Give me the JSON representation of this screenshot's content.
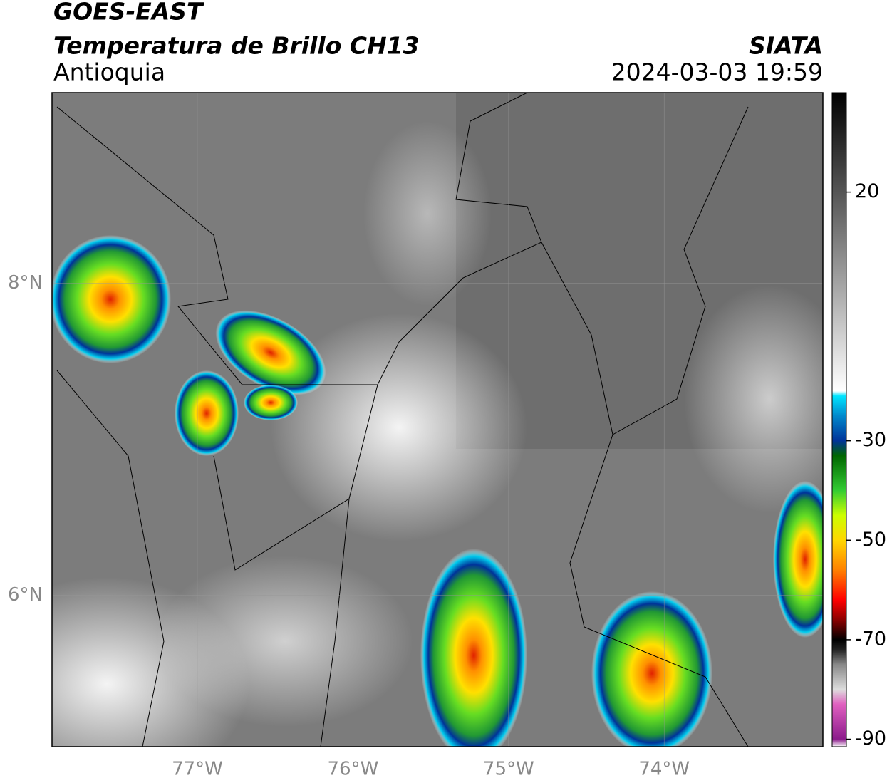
{
  "header": {
    "title": "GOES-EAST",
    "subtitle": "Temperatura de Brillo CH13",
    "region": "Antioquia",
    "source": "SIATA",
    "datetime": "2024-03-03 19:59"
  },
  "map": {
    "xlim": [
      -77.934,
      -72.98
    ],
    "ylim": [
      5.03,
      9.22
    ],
    "xticks": [
      {
        "value": -77,
        "label": "77°W"
      },
      {
        "value": -76,
        "label": "76°W"
      },
      {
        "value": -75,
        "label": "75°W"
      },
      {
        "value": -74,
        "label": "74°W"
      }
    ],
    "yticks": [
      {
        "value": 8,
        "label": "8°N"
      },
      {
        "value": 6,
        "label": "6°N"
      }
    ],
    "grid": true
  },
  "colorbar": {
    "lim": [
      -91.5,
      40
    ],
    "ticks": [
      20,
      -30,
      -50,
      -70,
      -90
    ],
    "stops": [
      {
        "value": -91.5,
        "color": "#ffffff"
      },
      {
        "value": -90,
        "color": "#8b1a8b"
      },
      {
        "value": -83,
        "color": "#e060c0"
      },
      {
        "value": -80,
        "color": "#dddddd"
      },
      {
        "value": -75,
        "color": "#888888"
      },
      {
        "value": -72,
        "color": "#222222"
      },
      {
        "value": -70,
        "color": "#000000"
      },
      {
        "value": -66,
        "color": "#8b0000"
      },
      {
        "value": -62,
        "color": "#ff0000"
      },
      {
        "value": -56,
        "color": "#ff8000"
      },
      {
        "value": -50,
        "color": "#ffd700"
      },
      {
        "value": -45,
        "color": "#ccff00"
      },
      {
        "value": -40,
        "color": "#33cc33"
      },
      {
        "value": -33,
        "color": "#006600"
      },
      {
        "value": -30,
        "color": "#003399"
      },
      {
        "value": -25,
        "color": "#0088cc"
      },
      {
        "value": -21,
        "color": "#00e5ff"
      },
      {
        "value": -20,
        "color": "#ffffff"
      },
      {
        "value": 40,
        "color": "#000000"
      }
    ]
  }
}
